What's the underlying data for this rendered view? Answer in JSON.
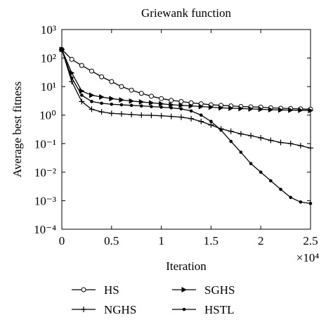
{
  "chart_data": {
    "type": "line",
    "title": "Griewank function",
    "xlabel": "Iteration",
    "ylabel": "Average best fitness",
    "x_multiplier": "×10⁴",
    "yscale": "log",
    "xlim": [
      0,
      2.5
    ],
    "ylim": [
      0.0001,
      1000
    ],
    "xticks": [
      0,
      0.5,
      1,
      1.5,
      2,
      2.5
    ],
    "yticks": [
      {
        "value": 0.0001,
        "label": "10⁻⁴"
      },
      {
        "value": 0.001,
        "label": "10⁻³"
      },
      {
        "value": 0.01,
        "label": "10⁻²"
      },
      {
        "value": 0.1,
        "label": "10⁻¹"
      },
      {
        "value": 1,
        "label": "10⁰"
      },
      {
        "value": 10,
        "label": "10¹"
      },
      {
        "value": 100,
        "label": "10²"
      },
      {
        "value": 1000,
        "label": "10³"
      }
    ],
    "x": [
      0,
      0.1,
      0.2,
      0.3,
      0.4,
      0.5,
      0.6,
      0.7,
      0.8,
      0.9,
      1.0,
      1.1,
      1.2,
      1.3,
      1.4,
      1.5,
      1.6,
      1.7,
      1.8,
      1.9,
      2.0,
      2.1,
      2.2,
      2.3,
      2.4,
      2.5
    ],
    "series": [
      {
        "name": "HS",
        "color": "#000000",
        "marker": "circle",
        "values": [
          200,
          90,
          55,
          35,
          22,
          15,
          10,
          7.5,
          5.8,
          4.6,
          3.8,
          3.3,
          3.0,
          2.7,
          2.5,
          2.3,
          2.2,
          2.1,
          2.0,
          1.95,
          1.9,
          1.8,
          1.75,
          1.7,
          1.65,
          1.6
        ]
      },
      {
        "name": "SGHS",
        "color": "#000000",
        "marker": "triangle",
        "values": [
          200,
          30,
          7,
          5,
          4.3,
          3.8,
          3.4,
          3.1,
          2.9,
          2.7,
          2.5,
          2.3,
          2.2,
          2.1,
          2.0,
          1.9,
          1.8,
          1.75,
          1.7,
          1.65,
          1.6,
          1.55,
          1.52,
          1.5,
          1.48,
          1.45
        ]
      },
      {
        "name": "NGHS",
        "color": "#000000",
        "marker": "plus",
        "values": [
          200,
          15,
          3,
          1.6,
          1.3,
          1.15,
          1.1,
          1.05,
          1.0,
          0.98,
          0.95,
          0.9,
          0.85,
          0.75,
          0.6,
          0.45,
          0.33,
          0.27,
          0.22,
          0.19,
          0.16,
          0.13,
          0.11,
          0.1,
          0.085,
          0.07
        ]
      },
      {
        "name": "HSTL",
        "color": "#000000",
        "marker": "dot",
        "values": [
          200,
          20,
          5,
          3,
          2.6,
          2.4,
          2.3,
          2.2,
          2.1,
          2.0,
          1.9,
          1.8,
          1.65,
          1.4,
          1.0,
          0.6,
          0.3,
          0.12,
          0.05,
          0.02,
          0.01,
          0.005,
          0.0025,
          0.0013,
          0.0009,
          0.0008
        ]
      }
    ]
  }
}
